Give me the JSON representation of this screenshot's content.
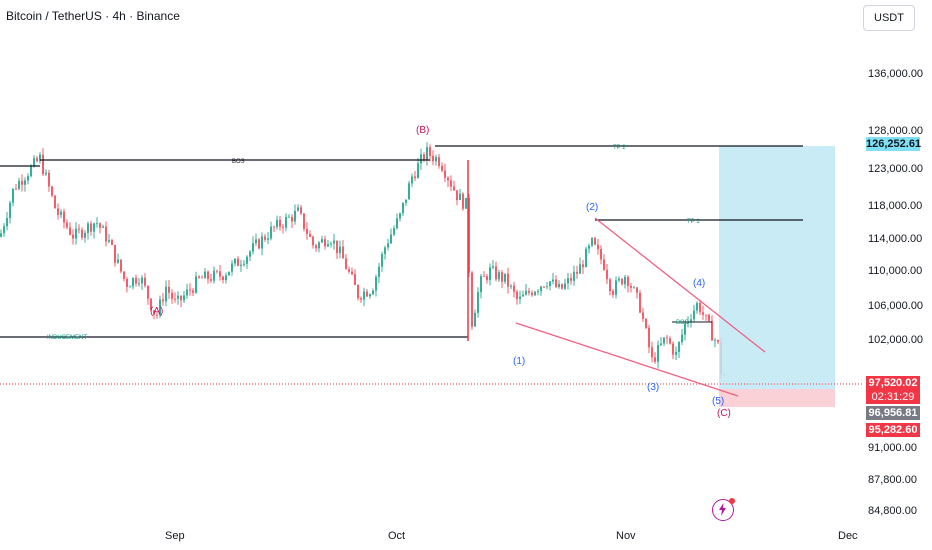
{
  "header": {
    "title": "Bitcoin / TetherUS · 4h · Binance",
    "currency": "USDT"
  },
  "chart_data": {
    "type": "candlestick",
    "symbol": "Bitcoin / TetherUS",
    "interval": "4h",
    "exchange": "Binance",
    "price_axis": {
      "ticks": [
        "136,000.00",
        "128,000.00",
        "123,000.00",
        "118,000.00",
        "114,000.00",
        "110,000.00",
        "106,000.00",
        "102,000.00",
        "91,000.00",
        "87,800.00",
        "84,800.00"
      ],
      "label_values": [
        136000,
        128000,
        123000,
        118000,
        114000,
        110000,
        106000,
        102000,
        91000,
        87800,
        84800
      ]
    },
    "time_axis": {
      "ticks": [
        "Sep",
        "Oct",
        "Nov",
        "Dec"
      ]
    },
    "price_labels": {
      "target_top": "126,252.61",
      "current_price": "97,520.02",
      "countdown": "02:31:29",
      "mid_price": "96,956.81",
      "stop_price": "95,282.60"
    },
    "price_path": [
      [
        0,
        115200
      ],
      [
        14,
        121500
      ],
      [
        28,
        123500
      ],
      [
        40,
        125200
      ],
      [
        56,
        118500
      ],
      [
        74,
        115200
      ],
      [
        96,
        117200
      ],
      [
        108,
        114800
      ],
      [
        126,
        109200
      ],
      [
        140,
        110200
      ],
      [
        156,
        104900
      ],
      [
        166,
        108800
      ],
      [
        176,
        106500
      ],
      [
        200,
        109800
      ],
      [
        222,
        110300
      ],
      [
        246,
        112800
      ],
      [
        272,
        116100
      ],
      [
        298,
        118300
      ],
      [
        314,
        113900
      ],
      [
        330,
        115300
      ],
      [
        342,
        112600
      ],
      [
        358,
        107800
      ],
      [
        372,
        108600
      ],
      [
        386,
        114300
      ],
      [
        400,
        117800
      ],
      [
        412,
        122900
      ],
      [
        426,
        126000
      ],
      [
        440,
        124900
      ],
      [
        458,
        120300
      ],
      [
        468,
        119000
      ],
      [
        470,
        103200
      ],
      [
        480,
        109200
      ],
      [
        490,
        110800
      ],
      [
        506,
        109600
      ],
      [
        518,
        106900
      ],
      [
        530,
        108200
      ],
      [
        548,
        109700
      ],
      [
        560,
        108300
      ],
      [
        578,
        110800
      ],
      [
        592,
        114300
      ],
      [
        604,
        111700
      ],
      [
        612,
        108300
      ],
      [
        626,
        110400
      ],
      [
        640,
        106300
      ],
      [
        652,
        99300
      ],
      [
        666,
        102300
      ],
      [
        676,
        100100
      ],
      [
        686,
        104400
      ],
      [
        698,
        106700
      ],
      [
        710,
        103300
      ],
      [
        718,
        101300
      ],
      [
        724,
        97500
      ]
    ],
    "annotations": {
      "structure_labels": [
        "BOS",
        "TP 2",
        "TP 1",
        "INDUCEMENT",
        "BOS"
      ],
      "wave_labels": [
        "(A)",
        "(B)",
        "(C)",
        "(1)",
        "(2)",
        "(3)",
        "(4)",
        "(5)"
      ]
    },
    "levels": [
      {
        "label": "BOS",
        "value": 124300
      },
      {
        "label": "TP 2",
        "value": 126252.61
      },
      {
        "label": "TP 1",
        "value": 116400
      },
      {
        "label": "INDUCEMENT",
        "value": 103300
      }
    ],
    "colors": {
      "up": "#089981",
      "down": "#f23645",
      "wave_blue": "#2962ff",
      "wave_pink": "#c2185b",
      "wedge": "#f06080",
      "target_zone": "#bfe8f5",
      "stop_zone": "#f9c9d0",
      "current_price_tag": "#f23645",
      "mid_price_tag": "#787b86",
      "target_tag": "#7fe0f3"
    }
  }
}
